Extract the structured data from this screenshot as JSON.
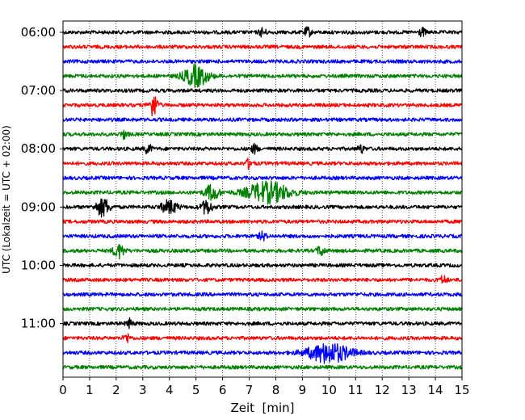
{
  "chart_data": {
    "type": "line",
    "title": "",
    "xlabel": "Zeit  [min]",
    "ylabel": "UTC (Lokalzeit = UTC + 02:00)",
    "xlim": [
      0,
      15
    ],
    "x_ticks": [
      "0",
      "1",
      "2",
      "3",
      "4",
      "5",
      "6",
      "7",
      "8",
      "9",
      "10",
      "11",
      "12",
      "13",
      "14",
      "15"
    ],
    "y_tick_labels": [
      "06:00",
      "07:00",
      "08:00",
      "09:00",
      "10:00",
      "11:00"
    ],
    "grid": "vertical-dotted",
    "trace_interval_minutes": 15,
    "trace_colors": [
      "#000000",
      "#ff0000",
      "#0000ff",
      "#008000"
    ],
    "traces": [
      {
        "start": "06:00",
        "color": "#000000",
        "events": [
          {
            "t": 7.5,
            "amp": 1.3
          },
          {
            "t": 9.2,
            "amp": 1.4
          },
          {
            "t": 13.5,
            "amp": 1.2
          }
        ]
      },
      {
        "start": "06:15",
        "color": "#ff0000",
        "events": []
      },
      {
        "start": "06:30",
        "color": "#0000ff",
        "events": []
      },
      {
        "start": "06:45",
        "color": "#008000",
        "events": [
          {
            "t": 5.0,
            "amp": 3.2,
            "dur": 0.9
          }
        ]
      },
      {
        "start": "07:00",
        "color": "#000000",
        "events": []
      },
      {
        "start": "07:15",
        "color": "#ff0000",
        "events": [
          {
            "t": 3.4,
            "amp": 3.6,
            "dur": 0.3
          }
        ]
      },
      {
        "start": "07:30",
        "color": "#0000ff",
        "events": []
      },
      {
        "start": "07:45",
        "color": "#008000",
        "events": [
          {
            "t": 2.3,
            "amp": 1.2
          }
        ]
      },
      {
        "start": "08:00",
        "color": "#000000",
        "events": [
          {
            "t": 3.2,
            "amp": 1.5
          },
          {
            "t": 7.2,
            "amp": 1.3
          },
          {
            "t": 11.2,
            "amp": 1.2
          }
        ]
      },
      {
        "start": "08:15",
        "color": "#ff0000",
        "events": [
          {
            "t": 7.0,
            "amp": 1.4
          }
        ]
      },
      {
        "start": "08:30",
        "color": "#0000ff",
        "events": []
      },
      {
        "start": "08:45",
        "color": "#008000",
        "events": [
          {
            "t": 5.6,
            "amp": 2.4,
            "dur": 0.5
          },
          {
            "t": 7.7,
            "amp": 3.2,
            "dur": 1.6
          }
        ]
      },
      {
        "start": "09:00",
        "color": "#000000",
        "events": [
          {
            "t": 1.5,
            "amp": 2.8,
            "dur": 0.5
          },
          {
            "t": 4.0,
            "amp": 2.0,
            "dur": 0.6
          },
          {
            "t": 5.4,
            "amp": 2.2,
            "dur": 0.4
          }
        ]
      },
      {
        "start": "09:15",
        "color": "#ff0000",
        "events": []
      },
      {
        "start": "09:30",
        "color": "#0000ff",
        "events": [
          {
            "t": 7.5,
            "amp": 1.3
          }
        ]
      },
      {
        "start": "09:45",
        "color": "#008000",
        "events": [
          {
            "t": 2.1,
            "amp": 2.2,
            "dur": 0.4
          },
          {
            "t": 9.7,
            "amp": 1.5,
            "dur": 0.3
          }
        ]
      },
      {
        "start": "10:00",
        "color": "#000000",
        "events": []
      },
      {
        "start": "10:15",
        "color": "#ff0000",
        "events": [
          {
            "t": 14.3,
            "amp": 1.2
          }
        ]
      },
      {
        "start": "10:30",
        "color": "#0000ff",
        "events": []
      },
      {
        "start": "10:45",
        "color": "#008000",
        "events": []
      },
      {
        "start": "11:00",
        "color": "#000000",
        "events": [
          {
            "t": 2.5,
            "amp": 1.3
          }
        ]
      },
      {
        "start": "11:15",
        "color": "#ff0000",
        "events": [
          {
            "t": 2.4,
            "amp": 1.3
          }
        ]
      },
      {
        "start": "11:30",
        "color": "#0000ff",
        "events": [
          {
            "t": 10.0,
            "amp": 3.0,
            "dur": 1.6
          }
        ]
      },
      {
        "start": "11:45",
        "color": "#008000",
        "events": []
      }
    ]
  }
}
